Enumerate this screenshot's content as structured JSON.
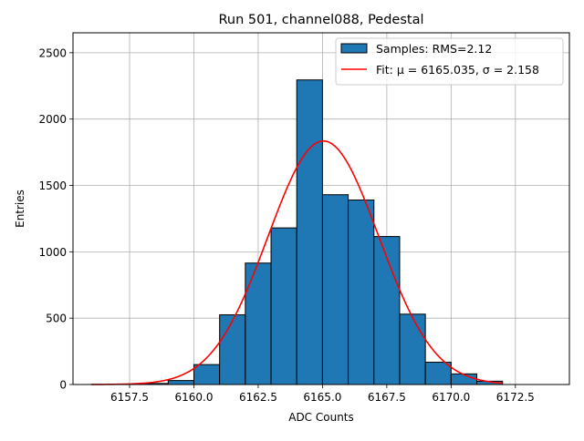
{
  "chart_data": {
    "type": "bar",
    "title": "Run 501, channel088, Pedestal",
    "xlabel": "ADC Counts",
    "ylabel": "Entries",
    "xlim": [
      6155.3,
      6174.6
    ],
    "ylim": [
      0,
      2650
    ],
    "xticks": [
      6157.5,
      6160.0,
      6162.5,
      6165.0,
      6167.5,
      6170.0,
      6172.5
    ],
    "xtick_labels": [
      "6157.5",
      "6160.0",
      "6162.5",
      "6165.0",
      "6167.5",
      "6170.0",
      "6172.5"
    ],
    "yticks": [
      0,
      500,
      1000,
      1500,
      2000,
      2500
    ],
    "ytick_labels": [
      "0",
      "500",
      "1000",
      "1500",
      "2000",
      "2500"
    ],
    "grid": true,
    "legend_position": "top-right",
    "series": [
      {
        "name": "Samples: RMS=2.12",
        "kind": "histogram",
        "color": "#1f77b4",
        "edgecolor": "#000000",
        "bin_edges": [
          6158,
          6159,
          6160,
          6161,
          6162,
          6163,
          6164,
          6165,
          6166,
          6167,
          6168,
          6169,
          6170,
          6171,
          6172
        ],
        "values": [
          8,
          30,
          150,
          525,
          915,
          1180,
          2295,
          1430,
          1390,
          1115,
          530,
          168,
          80,
          25
        ]
      },
      {
        "name": "Fit: μ = 6165.035, σ = 2.158",
        "kind": "gaussian",
        "color": "#ff0000",
        "mu": 6165.035,
        "sigma": 2.158,
        "amplitude": 1835,
        "x_range": [
          6156,
          6172
        ]
      }
    ]
  }
}
